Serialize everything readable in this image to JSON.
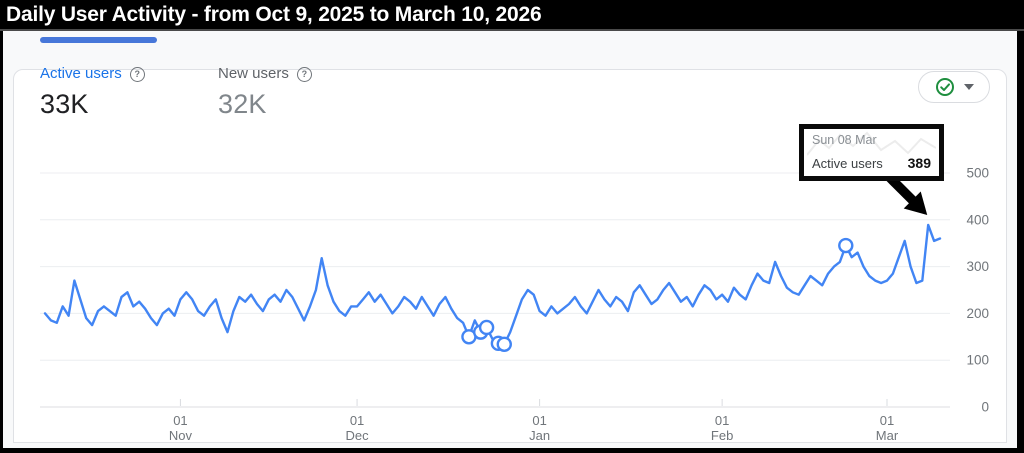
{
  "header": {
    "title": "Daily User Activity - from Oct 9, 2025 to March 10, 2026"
  },
  "metrics": [
    {
      "id": "active-users",
      "label": "Active users",
      "value": "33K",
      "selected": true
    },
    {
      "id": "new-users",
      "label": "New users",
      "value": "32K",
      "selected": false
    }
  ],
  "help_icon_glyph": "?",
  "quality_button": {
    "icon": "check-circle-icon",
    "status_color": "#1e8e3e"
  },
  "chart_data": {
    "type": "line",
    "title": "Daily User Activity",
    "date_range": {
      "start": "Oct 9, 2025",
      "end": "March 10, 2026"
    },
    "grid": true,
    "legend": "none",
    "y_axis": {
      "side": "right",
      "range": [
        0,
        500
      ],
      "ticks": [
        0,
        100,
        200,
        300,
        400,
        500
      ]
    },
    "x_axis": {
      "ticks": [
        {
          "day": "01",
          "month": "Nov",
          "day_index": 23
        },
        {
          "day": "01",
          "month": "Dec",
          "day_index": 53
        },
        {
          "day": "01",
          "month": "Jan",
          "day_index": 84
        },
        {
          "day": "01",
          "month": "Feb",
          "day_index": 115
        },
        {
          "day": "01",
          "month": "Mar",
          "day_index": 143
        }
      ]
    },
    "series": [
      {
        "name": "Active users",
        "color": "#4285F4",
        "values": [
          200,
          185,
          180,
          215,
          195,
          270,
          230,
          190,
          175,
          205,
          215,
          205,
          195,
          235,
          245,
          215,
          225,
          210,
          190,
          175,
          200,
          210,
          195,
          230,
          245,
          230,
          205,
          195,
          215,
          230,
          190,
          160,
          205,
          235,
          225,
          240,
          220,
          205,
          230,
          240,
          225,
          250,
          235,
          210,
          185,
          215,
          250,
          318,
          260,
          225,
          205,
          195,
          215,
          215,
          230,
          245,
          225,
          240,
          220,
          200,
          215,
          235,
          225,
          210,
          235,
          215,
          195,
          220,
          235,
          210,
          190,
          180,
          150,
          185,
          160,
          170,
          145,
          136,
          134,
          160,
          195,
          230,
          250,
          240,
          205,
          195,
          215,
          200,
          210,
          220,
          235,
          215,
          200,
          225,
          250,
          230,
          215,
          235,
          225,
          205,
          245,
          260,
          240,
          220,
          230,
          250,
          265,
          245,
          225,
          235,
          215,
          240,
          260,
          250,
          230,
          240,
          225,
          255,
          240,
          230,
          260,
          285,
          270,
          265,
          310,
          280,
          255,
          245,
          240,
          260,
          280,
          270,
          260,
          285,
          300,
          310,
          345,
          320,
          330,
          300,
          280,
          270,
          265,
          270,
          285,
          320,
          355,
          300,
          265,
          270,
          389,
          355,
          360
        ]
      }
    ],
    "marked_day_indices": [
      72,
      74,
      75,
      77,
      78,
      136
    ],
    "annotation_tooltip": {
      "date": "Sun 08 Mar",
      "label": "Active users",
      "value": "389",
      "day_index": 150
    },
    "colors": {
      "grid": "#eceef0",
      "zero_line": "#dcdee1",
      "axis_text": "#70757a",
      "annotation": "#000000"
    }
  }
}
